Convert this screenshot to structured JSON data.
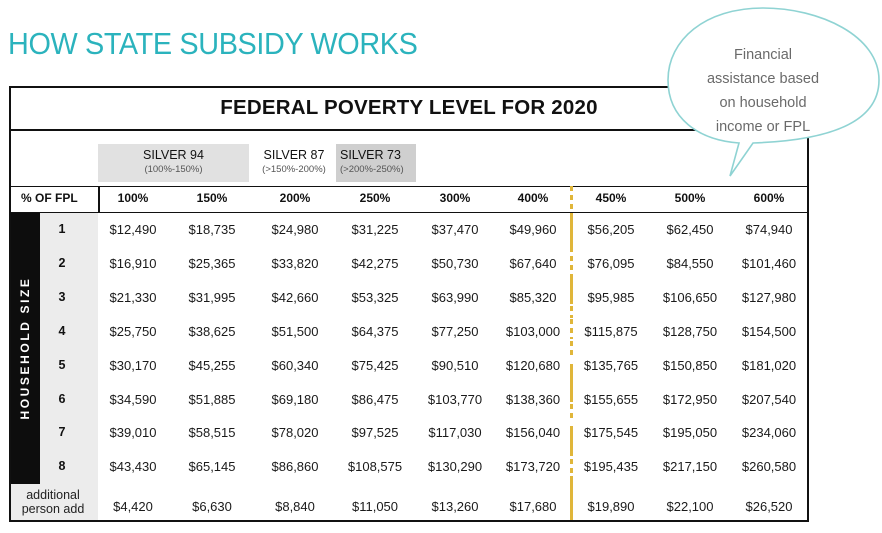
{
  "title": "HOW STATE SUBSIDY WORKS",
  "table_title": "FEDERAL POVERTY LEVEL FOR 2020",
  "plans": [
    {
      "name": "SILVER 94",
      "range": "(100%-150%)"
    },
    {
      "name": "SILVER 87",
      "range": "(>150%-200%)"
    },
    {
      "name": "SILVER 73",
      "range": "(>200%-250%)"
    }
  ],
  "fpl_header_label": "% OF FPL",
  "fpl_columns": [
    "100%",
    "150%",
    "200%",
    "250%",
    "300%",
    "400%",
    "450%",
    "500%",
    "600%"
  ],
  "household_size_label": "HOUSEHOLD SIZE",
  "rows": [
    {
      "size": "1",
      "values": [
        "$12,490",
        "$18,735",
        "$24,980",
        "$31,225",
        "$37,470",
        "$49,960",
        "$56,205",
        "$62,450",
        "$74,940"
      ]
    },
    {
      "size": "2",
      "values": [
        "$16,910",
        "$25,365",
        "$33,820",
        "$42,275",
        "$50,730",
        "$67,640",
        "$76,095",
        "$84,550",
        "$101,460"
      ]
    },
    {
      "size": "3",
      "values": [
        "$21,330",
        "$31,995",
        "$42,660",
        "$53,325",
        "$63,990",
        "$85,320",
        "$95,985",
        "$106,650",
        "$127,980"
      ]
    },
    {
      "size": "4",
      "values": [
        "$25,750",
        "$38,625",
        "$51,500",
        "$64,375",
        "$77,250",
        "$103,000",
        "$115,875",
        "$128,750",
        "$154,500"
      ]
    },
    {
      "size": "5",
      "values": [
        "$30,170",
        "$45,255",
        "$60,340",
        "$75,425",
        "$90,510",
        "$120,680",
        "$135,765",
        "$150,850",
        "$181,020"
      ]
    },
    {
      "size": "6",
      "values": [
        "$34,590",
        "$51,885",
        "$69,180",
        "$86,475",
        "$103,770",
        "$138,360",
        "$155,655",
        "$172,950",
        "$207,540"
      ]
    },
    {
      "size": "7",
      "values": [
        "$39,010",
        "$58,515",
        "$78,020",
        "$97,525",
        "$117,030",
        "$156,040",
        "$175,545",
        "$195,050",
        "$234,060"
      ]
    },
    {
      "size": "8",
      "values": [
        "$43,430",
        "$65,145",
        "$86,860",
        "$108,575",
        "$130,290",
        "$173,720",
        "$195,435",
        "$217,150",
        "$260,580"
      ]
    }
  ],
  "additional_row": {
    "label_line1": "additional",
    "label_line2": "person add",
    "values": [
      "$4,420",
      "$6,630",
      "$8,840",
      "$11,050",
      "$13,260",
      "$17,680",
      "$19,890",
      "$22,100",
      "$26,520"
    ]
  },
  "callout": {
    "line1": "Financial",
    "line2": "assistance based",
    "line3": "on household",
    "line4": "income or FPL"
  },
  "colors": {
    "title": "#2bb3bd",
    "callout_border": "#8fd3d3",
    "divider": "#e0b63a",
    "plan_shade_light": "#e1e1e1",
    "plan_shade_dark": "#cfcfcf",
    "household_band": "#0d0d0d"
  }
}
